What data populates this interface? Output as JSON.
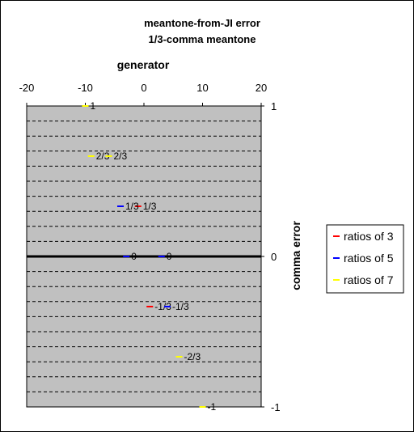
{
  "chart_data": {
    "type": "scatter",
    "title": "meantone-from-JI error",
    "subtitle": "1/3-comma meantone",
    "xlabel": "generator",
    "ylabel": "comma error",
    "xlim": [
      -20,
      20
    ],
    "ylim": [
      -1,
      1
    ],
    "x_ticks": [
      "-20",
      "-10",
      "0",
      "10",
      "20"
    ],
    "y_ticks": [
      "1",
      "0",
      "-1"
    ],
    "grid": "horizontal dashed",
    "legend_position": "right",
    "series": [
      {
        "name": "ratios of 3",
        "color": "#ff0000",
        "points": [
          {
            "x": -1,
            "y": 0.3333,
            "label": "1/3"
          },
          {
            "x": 1,
            "y": -0.3333,
            "label": "-1/3"
          }
        ]
      },
      {
        "name": "ratios of 5",
        "color": "#0000ff",
        "points": [
          {
            "x": -4,
            "y": 0.3333,
            "label": "1/3"
          },
          {
            "x": -3,
            "y": 0,
            "label": "0"
          },
          {
            "x": 3,
            "y": 0,
            "label": "0"
          },
          {
            "x": 4,
            "y": -0.3333,
            "label": "-1/3"
          }
        ]
      },
      {
        "name": "ratios of 7",
        "color": "#ffff00",
        "points": [
          {
            "x": -10,
            "y": 1,
            "label": "1"
          },
          {
            "x": -9,
            "y": 0.6667,
            "label": "2/3"
          },
          {
            "x": -6,
            "y": 0.6667,
            "label": "2/3"
          },
          {
            "x": 6,
            "y": -0.6667,
            "label": "-2/3"
          },
          {
            "x": 10,
            "y": -1,
            "label": "-1"
          }
        ]
      }
    ]
  }
}
